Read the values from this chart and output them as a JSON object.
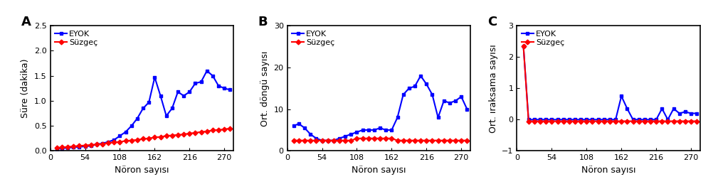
{
  "x_ticks": [
    0,
    54,
    108,
    162,
    216,
    270
  ],
  "x_max": 284,
  "A": {
    "label": "A",
    "ylabel": "Süre (dakika)",
    "xlabel": "Nöron sayısı",
    "ylim": [
      0,
      2.5
    ],
    "yticks": [
      0,
      0.5,
      1.0,
      1.5,
      2.0,
      2.5
    ],
    "eyok_x": [
      10,
      18,
      27,
      36,
      45,
      54,
      63,
      72,
      81,
      90,
      99,
      108,
      117,
      126,
      135,
      144,
      153,
      162,
      171,
      180,
      189,
      198,
      207,
      216,
      225,
      234,
      243,
      252,
      261,
      270,
      279
    ],
    "eyok_y": [
      0.04,
      0.05,
      0.06,
      0.07,
      0.08,
      0.09,
      0.1,
      0.13,
      0.15,
      0.18,
      0.22,
      0.3,
      0.38,
      0.5,
      0.65,
      0.85,
      0.97,
      1.47,
      1.1,
      0.7,
      0.85,
      1.18,
      1.1,
      1.18,
      1.35,
      1.38,
      1.6,
      1.5,
      1.3,
      1.25,
      1.22
    ],
    "suzgec_x": [
      10,
      18,
      27,
      36,
      45,
      54,
      63,
      72,
      81,
      90,
      99,
      108,
      117,
      126,
      135,
      144,
      153,
      162,
      171,
      180,
      189,
      198,
      207,
      216,
      225,
      234,
      243,
      252,
      261,
      270,
      279
    ],
    "suzgec_y": [
      0.06,
      0.07,
      0.08,
      0.09,
      0.1,
      0.11,
      0.12,
      0.13,
      0.14,
      0.16,
      0.17,
      0.18,
      0.2,
      0.21,
      0.22,
      0.24,
      0.25,
      0.27,
      0.28,
      0.3,
      0.31,
      0.32,
      0.33,
      0.35,
      0.36,
      0.38,
      0.39,
      0.41,
      0.42,
      0.43,
      0.45
    ]
  },
  "B": {
    "label": "B",
    "ylabel": "Ort. döngü sayısı",
    "xlabel": "Nöron sayısı",
    "ylim": [
      0,
      30
    ],
    "yticks": [
      0,
      10,
      20,
      30
    ],
    "eyok_x": [
      10,
      18,
      27,
      36,
      45,
      54,
      63,
      72,
      81,
      90,
      99,
      108,
      117,
      126,
      135,
      144,
      153,
      162,
      171,
      180,
      189,
      198,
      207,
      216,
      225,
      234,
      243,
      252,
      261,
      270,
      279
    ],
    "eyok_y": [
      6.0,
      6.5,
      5.5,
      4.0,
      3.0,
      2.5,
      2.5,
      2.5,
      3.0,
      3.5,
      4.0,
      4.5,
      5.0,
      5.0,
      5.0,
      5.5,
      5.0,
      5.0,
      8.0,
      13.5,
      15.0,
      15.5,
      18.0,
      16.0,
      13.5,
      8.0,
      12.0,
      11.5,
      12.0,
      13.0,
      10.0
    ],
    "suzgec_x": [
      10,
      18,
      27,
      36,
      45,
      54,
      63,
      72,
      81,
      90,
      99,
      108,
      117,
      126,
      135,
      144,
      153,
      162,
      171,
      180,
      189,
      198,
      207,
      216,
      225,
      234,
      243,
      252,
      261,
      270,
      279
    ],
    "suzgec_y": [
      2.5,
      2.5,
      2.5,
      2.5,
      2.5,
      2.5,
      2.5,
      2.5,
      2.5,
      2.5,
      2.5,
      3.0,
      3.0,
      3.0,
      3.0,
      3.0,
      3.0,
      3.0,
      2.5,
      2.5,
      2.5,
      2.5,
      2.5,
      2.5,
      2.5,
      2.5,
      2.5,
      2.5,
      2.5,
      2.5,
      2.5
    ]
  },
  "C": {
    "label": "C",
    "ylabel": "Ort. ıraksama sayısı",
    "xlabel": "Nöron sayısı",
    "ylim": [
      -1,
      3
    ],
    "yticks": [
      -1,
      0,
      1,
      2,
      3
    ],
    "eyok_x": [
      10,
      18,
      27,
      36,
      45,
      54,
      63,
      72,
      81,
      90,
      99,
      108,
      117,
      126,
      135,
      144,
      153,
      162,
      171,
      180,
      189,
      198,
      207,
      216,
      225,
      234,
      243,
      252,
      261,
      270,
      279
    ],
    "eyok_y": [
      2.35,
      0.0,
      0.0,
      0.0,
      0.0,
      0.0,
      0.0,
      0.0,
      0.0,
      0.0,
      0.0,
      0.0,
      0.0,
      0.0,
      0.0,
      0.0,
      0.0,
      0.75,
      0.35,
      0.0,
      0.0,
      0.0,
      0.0,
      0.0,
      0.35,
      0.0,
      0.35,
      0.2,
      0.25,
      0.2,
      0.2
    ],
    "suzgec_x": [
      10,
      18,
      27,
      36,
      45,
      54,
      63,
      72,
      81,
      90,
      99,
      108,
      117,
      126,
      135,
      144,
      153,
      162,
      171,
      180,
      189,
      198,
      207,
      216,
      225,
      234,
      243,
      252,
      261,
      270,
      279
    ],
    "suzgec_y": [
      2.35,
      -0.05,
      -0.05,
      -0.05,
      -0.05,
      -0.05,
      -0.05,
      -0.05,
      -0.05,
      -0.05,
      -0.05,
      -0.05,
      -0.05,
      -0.05,
      -0.05,
      -0.05,
      -0.05,
      -0.05,
      -0.05,
      -0.05,
      -0.05,
      -0.05,
      -0.05,
      -0.05,
      -0.05,
      -0.05,
      -0.05,
      -0.05,
      -0.05,
      -0.05,
      -0.05
    ]
  },
  "eyok_color": "#0000FF",
  "suzgec_color": "#FF0000",
  "eyok_label": "EYOK",
  "suzgec_label": "Süzgeç",
  "marker_eyok": "s",
  "marker_suzgec": "D",
  "linewidth": 1.5,
  "markersize": 3.5,
  "tick_fontsize": 8,
  "label_fontsize": 9,
  "legend_fontsize": 8,
  "panel_fontsize": 13
}
